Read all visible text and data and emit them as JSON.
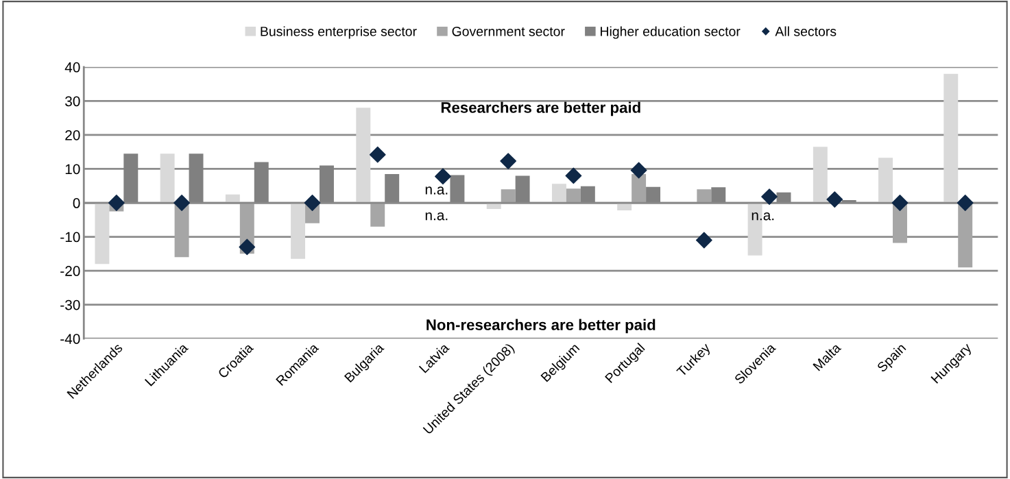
{
  "chart_data": {
    "type": "bar",
    "categories": [
      "Netherlands",
      "Lithuania",
      "Croatia",
      "Romania",
      "Bulgaria",
      "Latvia",
      "United States (2008)",
      "Belgium",
      "Portugal",
      "Turkey",
      "Slovenia",
      "Malta",
      "Spain",
      "Hungary"
    ],
    "series": [
      {
        "name": "Business enterprise sector",
        "color": "#d9d9d9",
        "values": [
          -18,
          14.5,
          2.5,
          -16.5,
          28,
          null,
          -1.8,
          5.6,
          -2.2,
          0,
          -15.5,
          16.5,
          13.3,
          38
        ]
      },
      {
        "name": "Government sector",
        "color": "#a6a6a6",
        "values": [
          -2.5,
          -16,
          -15,
          -6,
          -7,
          null,
          4,
          4.2,
          8.5,
          4,
          null,
          0,
          -11.8,
          -19
        ]
      },
      {
        "name": "Higher education sector",
        "color": "#808080",
        "values": [
          14.5,
          14.5,
          12,
          11,
          8.5,
          8.2,
          8,
          4.9,
          4.7,
          4.6,
          3.1,
          0.8,
          0,
          0
        ]
      },
      {
        "name": "All sectors",
        "type": "scatter",
        "marker": "diamond",
        "color": "#0f2847",
        "values": [
          0,
          0,
          -13,
          0,
          14.2,
          7.8,
          12.3,
          8,
          9.6,
          -11,
          1.8,
          1,
          0,
          0
        ]
      }
    ],
    "ylim": [
      -40,
      40
    ],
    "yticks": [
      -40,
      -30,
      -20,
      -10,
      0,
      10,
      20,
      30,
      40
    ],
    "grid": "y",
    "legend": "top",
    "annotations": [
      "Researchers are better paid",
      "Non-researchers are better paid",
      "n.a.",
      "n.a.",
      "n.a."
    ]
  }
}
